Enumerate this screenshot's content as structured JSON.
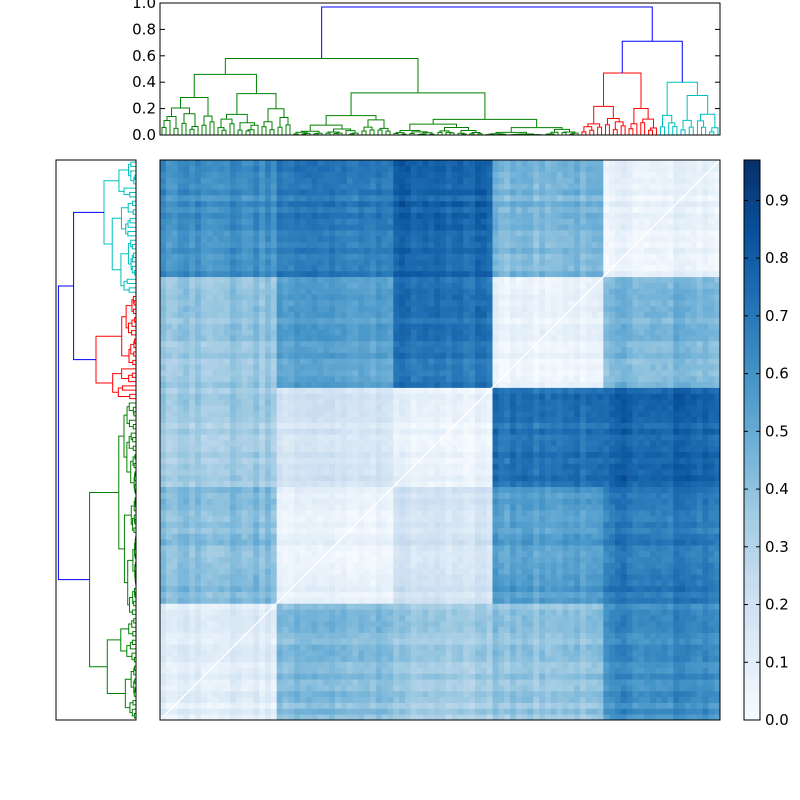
{
  "chart_data": [
    {
      "type": "dendrogram",
      "orientation": "top",
      "ylim": [
        0.0,
        1.0
      ],
      "yticks": [
        "0.0",
        "0.2",
        "0.4",
        "0.6",
        "0.8",
        "1.0"
      ],
      "root_height": 0.97,
      "clusters": [
        {
          "color": "#008000",
          "leaf_fraction": 0.75,
          "merge_height": 0.58
        },
        {
          "color": "#ff0000",
          "leaf_fraction": 0.14,
          "merge_height": 0.47
        },
        {
          "color": "#00bfbf",
          "leaf_fraction": 0.11,
          "merge_height": 0.4
        }
      ],
      "link_color_above_threshold": "#0000ff"
    },
    {
      "type": "dendrogram",
      "orientation": "left",
      "clusters": [
        {
          "color": "#00bfbf",
          "leaf_fraction": 0.24
        },
        {
          "color": "#ff0000",
          "leaf_fraction": 0.19
        },
        {
          "color": "#008000",
          "leaf_fraction": 0.57
        }
      ],
      "link_color_above_threshold": "#0000ff"
    },
    {
      "type": "heatmap",
      "colormap": "Blues",
      "value_range": [
        0.0,
        0.97
      ],
      "diagonal_value": 0.0,
      "blocks": [
        0.21,
        0.21,
        0.17,
        0.2,
        0.21
      ],
      "block_values": [
        [
          0.12,
          0.43,
          0.35,
          0.38,
          0.62
        ],
        [
          0.43,
          0.08,
          0.18,
          0.55,
          0.7
        ],
        [
          0.35,
          0.18,
          0.07,
          0.72,
          0.78
        ],
        [
          0.38,
          0.55,
          0.72,
          0.06,
          0.45
        ],
        [
          0.62,
          0.7,
          0.78,
          0.45,
          0.08
        ]
      ],
      "colorbar_ticks": [
        "0.0",
        "0.1",
        "0.2",
        "0.3",
        "0.4",
        "0.5",
        "0.6",
        "0.7",
        "0.8",
        "0.9"
      ]
    }
  ]
}
